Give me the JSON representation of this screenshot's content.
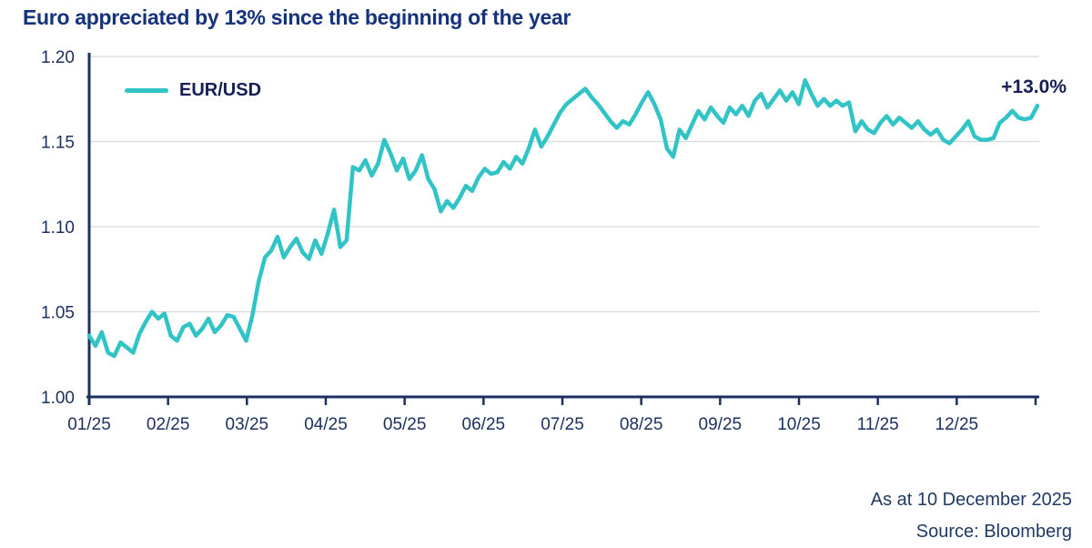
{
  "title": "Euro appreciated by 13% since the beginning of the year",
  "legend": {
    "label": "EUR/USD"
  },
  "annotation": {
    "text": "+13.0%"
  },
  "footer": {
    "as_at": "As at 10 December 2025",
    "source": "Source: Bloomberg"
  },
  "colors": {
    "title_navy": "#14337a",
    "dark_navy": "#171e57",
    "axis_navy": "#1c3060",
    "footer_navy": "#1f3a66",
    "teal": "#31c3c6",
    "grid_gray": "#d9d9d9",
    "background": "#ffffff"
  },
  "chart_data": {
    "type": "line",
    "title": "Euro appreciated by 13% since the beginning of the year",
    "xlabel": "",
    "ylabel": "",
    "ylim": [
      1.0,
      1.2
    ],
    "grid": "horizontal",
    "legend_position": "top-left",
    "annotation": "+13.0%",
    "y_tick_labels": [
      "1.00",
      "1.05",
      "1.10",
      "1.15",
      "1.20"
    ],
    "y_ticks": [
      1.0,
      1.05,
      1.1,
      1.15,
      1.2
    ],
    "x_labels": [
      "01/25",
      "02/25",
      "03/25",
      "04/25",
      "05/25",
      "06/25",
      "07/25",
      "08/25",
      "09/25",
      "10/25",
      "11/25",
      "12/25"
    ],
    "series": [
      {
        "name": "EUR/USD",
        "color": "#31c3c6",
        "values": [
          1.036,
          1.03,
          1.038,
          1.026,
          1.024,
          1.032,
          1.029,
          1.026,
          1.037,
          1.044,
          1.05,
          1.046,
          1.049,
          1.036,
          1.033,
          1.041,
          1.043,
          1.036,
          1.04,
          1.046,
          1.038,
          1.042,
          1.048,
          1.047,
          1.04,
          1.033,
          1.048,
          1.068,
          1.082,
          1.086,
          1.094,
          1.082,
          1.088,
          1.093,
          1.085,
          1.081,
          1.092,
          1.084,
          1.096,
          1.11,
          1.088,
          1.092,
          1.135,
          1.133,
          1.139,
          1.13,
          1.137,
          1.151,
          1.143,
          1.133,
          1.14,
          1.128,
          1.133,
          1.142,
          1.128,
          1.122,
          1.109,
          1.115,
          1.111,
          1.117,
          1.124,
          1.121,
          1.129,
          1.134,
          1.131,
          1.132,
          1.138,
          1.134,
          1.141,
          1.137,
          1.146,
          1.157,
          1.147,
          1.153,
          1.16,
          1.167,
          1.172,
          1.175,
          1.178,
          1.181,
          1.176,
          1.172,
          1.167,
          1.162,
          1.158,
          1.162,
          1.16,
          1.166,
          1.173,
          1.179,
          1.172,
          1.163,
          1.146,
          1.141,
          1.157,
          1.152,
          1.16,
          1.168,
          1.163,
          1.17,
          1.165,
          1.161,
          1.17,
          1.166,
          1.171,
          1.165,
          1.174,
          1.178,
          1.17,
          1.175,
          1.18,
          1.174,
          1.179,
          1.172,
          1.186,
          1.178,
          1.171,
          1.175,
          1.171,
          1.174,
          1.171,
          1.173,
          1.156,
          1.162,
          1.157,
          1.155,
          1.161,
          1.165,
          1.16,
          1.164,
          1.161,
          1.158,
          1.162,
          1.157,
          1.154,
          1.157,
          1.151,
          1.149,
          1.153,
          1.157,
          1.162,
          1.153,
          1.151,
          1.151,
          1.152,
          1.161,
          1.164,
          1.168,
          1.164,
          1.163,
          1.164,
          1.171
        ]
      }
    ]
  }
}
